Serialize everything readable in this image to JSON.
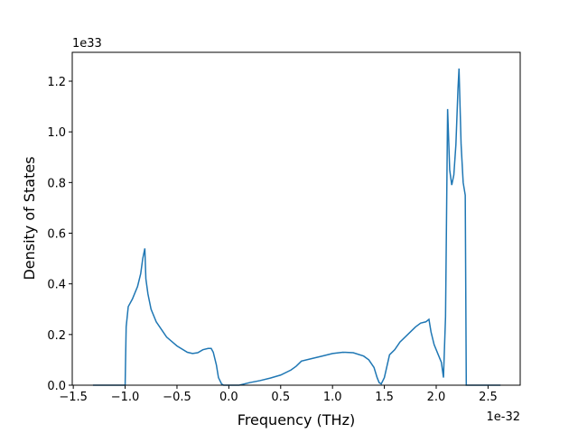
{
  "chart_data": {
    "type": "line",
    "x_label": "Frequency (THz)",
    "y_label": "Density of States",
    "x_offset_text": "1e-32",
    "y_offset_text": "1e33",
    "xlim": [
      -1.51,
      2.81
    ],
    "ylim": [
      0,
      1.314
    ],
    "xticks": [
      {
        "value": -1.5,
        "label": "−1.5"
      },
      {
        "value": -1.0,
        "label": "−1.0"
      },
      {
        "value": -0.5,
        "label": "−0.5"
      },
      {
        "value": 0,
        "label": "0.0"
      },
      0.5,
      {
        "value": 1,
        "label": "1.0"
      },
      1.5,
      {
        "value": 2,
        "label": "2.0"
      },
      2.5
    ],
    "yticks": [
      {
        "value": 0,
        "label": "0.0"
      },
      0.2,
      0.4,
      0.6,
      0.8,
      {
        "value": 1,
        "label": "1.0"
      },
      1.2
    ],
    "series": [
      {
        "color": "#1f77b4",
        "x": [
          -1.31,
          -1.0,
          -0.99,
          -0.97,
          -0.93,
          -0.88,
          -0.85,
          -0.83,
          -0.81,
          -0.8,
          -0.78,
          -0.75,
          -0.7,
          -0.65,
          -0.6,
          -0.5,
          -0.4,
          -0.35,
          -0.3,
          -0.25,
          -0.2,
          -0.17,
          -0.15,
          -0.12,
          -0.1,
          -0.07,
          -0.05,
          0.1,
          0.2,
          0.3,
          0.4,
          0.5,
          0.6,
          0.65,
          0.7,
          0.8,
          0.9,
          1.0,
          1.1,
          1.2,
          1.3,
          1.35,
          1.4,
          1.43,
          1.45,
          1.47,
          1.5,
          1.55,
          1.6,
          1.65,
          1.75,
          1.8,
          1.85,
          1.9,
          1.93,
          1.95,
          1.98,
          2.02,
          2.05,
          2.07,
          2.09,
          2.11,
          2.13,
          2.15,
          2.17,
          2.19,
          2.21,
          2.22,
          2.24,
          2.26,
          2.28,
          2.29,
          2.62
        ],
        "values": [
          0,
          0,
          0.23,
          0.31,
          0.34,
          0.39,
          0.44,
          0.5,
          0.54,
          0.42,
          0.36,
          0.3,
          0.25,
          0.22,
          0.19,
          0.155,
          0.13,
          0.125,
          0.128,
          0.14,
          0.145,
          0.145,
          0.13,
          0.08,
          0.03,
          0.005,
          0,
          0,
          0.01,
          0.018,
          0.028,
          0.04,
          0.06,
          0.075,
          0.095,
          0.105,
          0.115,
          0.125,
          0.13,
          0.128,
          0.115,
          0.1,
          0.07,
          0.03,
          0.01,
          0.005,
          0.03,
          0.12,
          0.14,
          0.17,
          0.21,
          0.23,
          0.245,
          0.25,
          0.26,
          0.21,
          0.16,
          0.12,
          0.09,
          0.03,
          0.27,
          1.09,
          0.85,
          0.79,
          0.83,
          0.95,
          1.17,
          1.25,
          0.95,
          0.8,
          0.75,
          0,
          0
        ]
      }
    ]
  }
}
